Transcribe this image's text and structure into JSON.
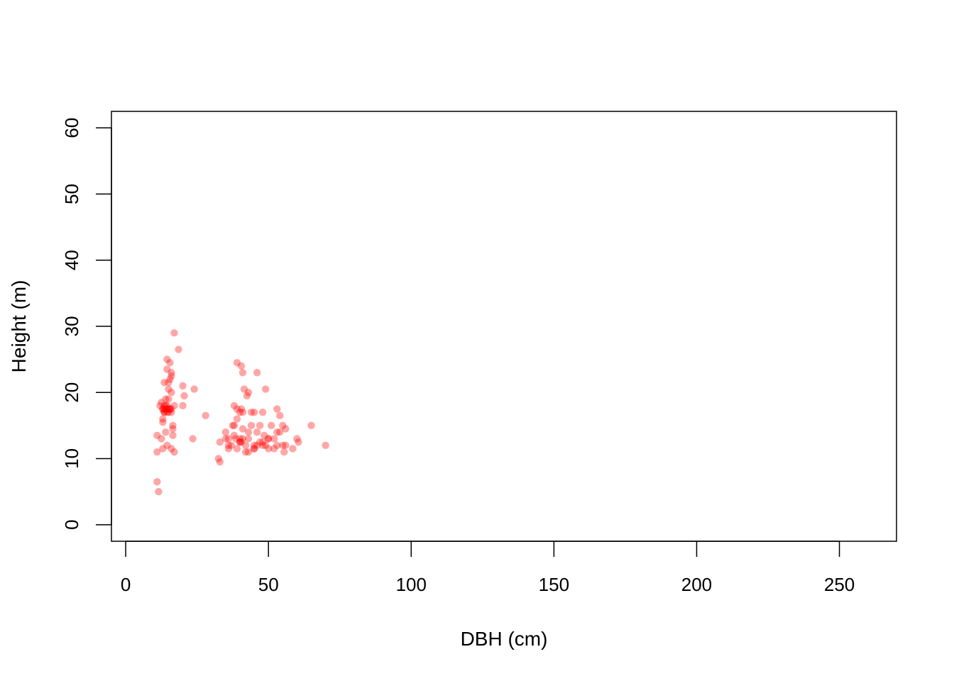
{
  "chart_data": {
    "type": "scatter",
    "title": "",
    "xlabel": "DBH (cm)",
    "ylabel": "Height (m)",
    "xlim": [
      -5,
      270
    ],
    "ylim": [
      -2.5,
      62.5
    ],
    "xticks": [
      0,
      50,
      100,
      150,
      200,
      250
    ],
    "xtick_labels": [
      "0",
      "50",
      "100",
      "150",
      "200",
      "250"
    ],
    "yticks": [
      0,
      10,
      20,
      30,
      40,
      50,
      60
    ],
    "ytick_labels": [
      "0",
      "10",
      "20",
      "30",
      "40",
      "50",
      "60"
    ],
    "grid": false,
    "legend": "none",
    "colors": {
      "point": "#ff0000",
      "axis": "#000000"
    },
    "point_opacity": 0.35,
    "series": [
      {
        "x": [
          17.0,
          18.5,
          14.5,
          15.5,
          14.5,
          16.0,
          16.0,
          15.5,
          15.0,
          13.5,
          15.0,
          16.0,
          20.0,
          24.0,
          20.5,
          15.0,
          14.0,
          12.5,
          13.5,
          13.0,
          12.0,
          13.0,
          13.5,
          14.0,
          14.5,
          15.0,
          16.0,
          17.0,
          14.0,
          13.5,
          14.5,
          15.5,
          13.0,
          16.5,
          20.0,
          28.0,
          16.5,
          14.0,
          11.0,
          16.5,
          23.5,
          13.0,
          16.0,
          17.0,
          11.0,
          11.0,
          11.5,
          14.5,
          13.5,
          15.5,
          15.0,
          16.0,
          13.0,
          12.5,
          14.5
        ],
        "y": [
          29.0,
          26.5,
          25.0,
          24.5,
          23.5,
          23.0,
          22.5,
          22.0,
          21.5,
          21.5,
          20.5,
          20.0,
          21.0,
          20.5,
          19.5,
          19.0,
          19.0,
          18.5,
          18.0,
          17.5,
          18.0,
          17.5,
          17.5,
          17.5,
          17.5,
          17.5,
          17.5,
          18.0,
          18.0,
          17.0,
          17.0,
          17.5,
          16.0,
          15.0,
          18.0,
          16.5,
          14.5,
          14.0,
          13.5,
          13.5,
          13.0,
          11.5,
          11.5,
          11.0,
          11.0,
          6.5,
          5.0,
          18.0,
          17.0,
          17.5,
          17.0,
          17.0,
          15.5,
          13.0,
          12.0
        ]
      },
      {
        "x": [
          39.0,
          40.5,
          41.0,
          46.0,
          41.5,
          49.0,
          43.0,
          42.5,
          40.5,
          38.0,
          39.0,
          40.0,
          41.0,
          44.0,
          45.0,
          48.0,
          53.0,
          54.0,
          39.0,
          37.5,
          38.0,
          41.0,
          44.0,
          47.0,
          51.0,
          55.0,
          56.0,
          65.0,
          35.0,
          38.0,
          40.0,
          43.0,
          46.0,
          48.5,
          53.0,
          54.0,
          35.0,
          36.0,
          38.5,
          40.0,
          41.0,
          43.0,
          46.0,
          48.0,
          50.0,
          52.0,
          55.0,
          60.0,
          33.0,
          36.0,
          40.0,
          42.0,
          45.0,
          47.0,
          49.0,
          53.0,
          56.0,
          70.0,
          32.5,
          33.0,
          36.0,
          39.0,
          42.0,
          45.0,
          50.0,
          55.5,
          58.5,
          43.0,
          52.0,
          48.0,
          50.0,
          37.0,
          45.0,
          40.5,
          60.5
        ],
        "y": [
          24.5,
          24.0,
          23.0,
          23.0,
          20.5,
          20.5,
          20.0,
          19.5,
          17.5,
          18.0,
          17.5,
          17.0,
          17.0,
          17.0,
          17.0,
          17.0,
          17.5,
          16.5,
          16.0,
          15.0,
          15.0,
          14.5,
          15.0,
          15.0,
          15.0,
          15.0,
          14.5,
          15.0,
          14.0,
          13.5,
          13.0,
          14.0,
          14.0,
          13.5,
          14.0,
          14.0,
          13.0,
          13.0,
          13.0,
          12.5,
          13.0,
          13.0,
          12.0,
          12.5,
          13.0,
          13.0,
          12.0,
          13.0,
          12.5,
          12.0,
          12.5,
          12.0,
          12.0,
          12.5,
          12.0,
          12.0,
          12.0,
          12.0,
          10.0,
          9.5,
          11.5,
          11.5,
          11.0,
          11.5,
          11.5,
          11.0,
          11.5,
          11.0,
          11.5,
          12.0,
          13.0,
          12.0,
          11.5,
          12.5,
          12.5
        ]
      }
    ]
  }
}
